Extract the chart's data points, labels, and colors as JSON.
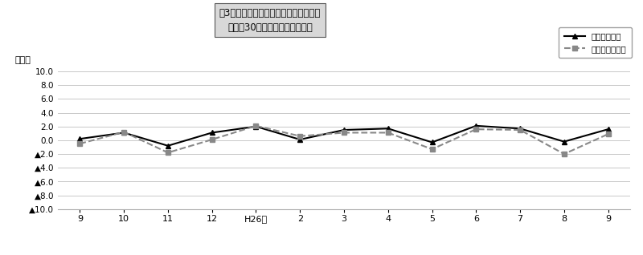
{
  "title_line1": "嘦3　労働時間の推移（対前年同月比）",
  "title_line2": "－規樨30人以上－　調査産業計",
  "ylabel": "（％）",
  "series1_name": "総実労働時間",
  "series2_name": "所定内労働時間",
  "x_labels": [
    "9",
    "10",
    "11",
    "12",
    "H26年",
    "2",
    "3",
    "4",
    "5",
    "6",
    "7",
    "8",
    "9"
  ],
  "x_label_special_idx": 4,
  "series1_values": [
    0.2,
    1.1,
    -0.8,
    1.1,
    2.0,
    0.1,
    1.5,
    1.7,
    -0.3,
    2.1,
    1.7,
    -0.2,
    1.6
  ],
  "series2_values": [
    -0.5,
    1.2,
    -1.8,
    0.1,
    2.1,
    0.6,
    1.1,
    1.1,
    -1.3,
    1.6,
    1.5,
    -2.0,
    0.9
  ],
  "ylim_min": -10.0,
  "ylim_max": 10.0,
  "ytick_vals": [
    10.0,
    8.0,
    6.0,
    4.0,
    2.0,
    0.0,
    -2.0,
    -4.0,
    -6.0,
    -8.0,
    -10.0
  ],
  "ytick_labels_pos": [
    "10.0",
    "8.0",
    "6.0",
    "4.0",
    "2.0",
    "0.0"
  ],
  "ytick_labels_neg": [
    "▲2.0",
    "▲4.0",
    "▲6.0",
    "▲8.0",
    "▲10.0"
  ],
  "series1_color": "#000000",
  "series2_color": "#888888",
  "background_color": "#ffffff",
  "grid_color": "#c8c8c8",
  "title_box_facecolor": "#d8d8d8",
  "title_box_edgecolor": "#555555"
}
